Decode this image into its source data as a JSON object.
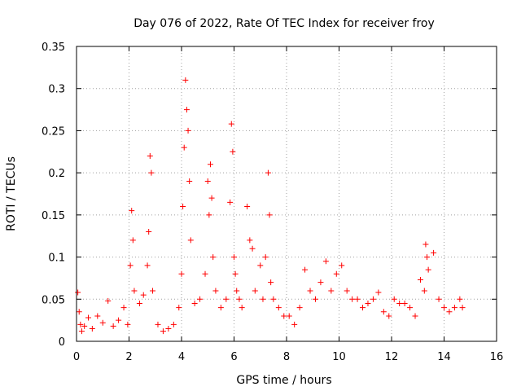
{
  "chart_data": {
    "type": "scatter",
    "title": "Day 076 of 2022, Rate Of TEC Index for receiver froy",
    "xlabel": "GPS time / hours",
    "ylabel": "ROTI / TECUs",
    "xlim": [
      0,
      16
    ],
    "ylim": [
      0,
      0.35
    ],
    "x_ticks": [
      0,
      2,
      4,
      6,
      8,
      10,
      12,
      14,
      16
    ],
    "x_tick_labels": [
      "0",
      "2",
      "4",
      "6",
      "8",
      "10",
      "12",
      "14",
      "16"
    ],
    "y_ticks": [
      0,
      0.05,
      0.1,
      0.15,
      0.2,
      0.25,
      0.3,
      0.35
    ],
    "y_tick_labels": [
      "0",
      "0.05",
      "0.1",
      "0.15",
      "0.2",
      "0.25",
      "0.3",
      "0.35"
    ],
    "grid": true,
    "marker": "+",
    "color": "#ff0000",
    "series": [
      {
        "name": "ROTI",
        "x": [
          0.05,
          0.1,
          0.15,
          0.2,
          0.3,
          0.45,
          0.6,
          0.8,
          1.0,
          1.2,
          1.4,
          1.6,
          1.8,
          1.95,
          2.05,
          2.1,
          2.15,
          2.2,
          2.4,
          2.55,
          2.7,
          2.75,
          2.8,
          2.85,
          2.9,
          3.1,
          3.3,
          3.5,
          3.7,
          3.9,
          4.0,
          4.05,
          4.1,
          4.15,
          4.2,
          4.25,
          4.3,
          4.35,
          4.5,
          4.7,
          4.9,
          5.0,
          5.05,
          5.1,
          5.15,
          5.2,
          5.3,
          5.5,
          5.7,
          5.85,
          5.9,
          5.95,
          6.0,
          6.05,
          6.1,
          6.2,
          6.3,
          6.5,
          6.6,
          6.7,
          6.8,
          7.0,
          7.1,
          7.2,
          7.3,
          7.35,
          7.4,
          7.5,
          7.7,
          7.9,
          8.1,
          8.3,
          8.5,
          8.7,
          8.9,
          9.1,
          9.3,
          9.5,
          9.7,
          9.9,
          10.1,
          10.3,
          10.5,
          10.7,
          10.9,
          11.1,
          11.3,
          11.5,
          11.7,
          11.9,
          12.1,
          12.3,
          12.5,
          12.7,
          12.9,
          13.1,
          13.25,
          13.3,
          13.35,
          13.4,
          13.6,
          13.8,
          14.0,
          14.2,
          14.4,
          14.6,
          14.7
        ],
        "y": [
          0.058,
          0.035,
          0.02,
          0.012,
          0.018,
          0.028,
          0.015,
          0.03,
          0.022,
          0.048,
          0.018,
          0.025,
          0.04,
          0.02,
          0.09,
          0.155,
          0.12,
          0.06,
          0.045,
          0.055,
          0.09,
          0.13,
          0.22,
          0.2,
          0.06,
          0.02,
          0.012,
          0.015,
          0.02,
          0.04,
          0.08,
          0.16,
          0.23,
          0.31,
          0.275,
          0.25,
          0.19,
          0.12,
          0.045,
          0.05,
          0.08,
          0.19,
          0.15,
          0.21,
          0.17,
          0.1,
          0.06,
          0.04,
          0.05,
          0.165,
          0.258,
          0.225,
          0.1,
          0.08,
          0.06,
          0.05,
          0.04,
          0.16,
          0.12,
          0.11,
          0.06,
          0.09,
          0.05,
          0.1,
          0.2,
          0.15,
          0.07,
          0.05,
          0.04,
          0.03,
          0.03,
          0.02,
          0.04,
          0.085,
          0.06,
          0.05,
          0.07,
          0.095,
          0.06,
          0.08,
          0.09,
          0.06,
          0.05,
          0.05,
          0.04,
          0.045,
          0.05,
          0.058,
          0.035,
          0.03,
          0.05,
          0.045,
          0.045,
          0.04,
          0.03,
          0.073,
          0.06,
          0.115,
          0.1,
          0.085,
          0.105,
          0.05,
          0.04,
          0.035,
          0.04,
          0.05,
          0.04
        ]
      }
    ]
  }
}
